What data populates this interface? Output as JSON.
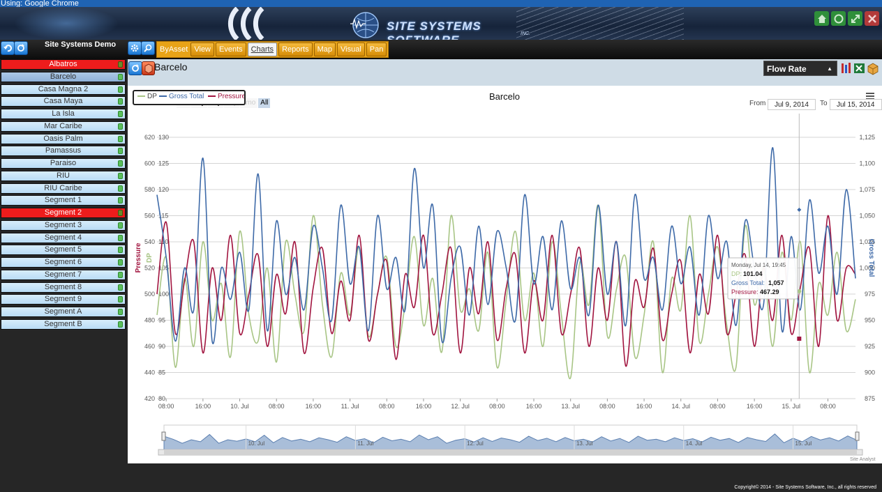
{
  "browser_bar": {
    "text": "Using: Google Chrome"
  },
  "brand": {
    "name": "SITE SYSTEMS SOFTWARE",
    "suffix": "INC."
  },
  "toolbar": {
    "site_title": "Site Systems Demo",
    "nav_label": "ByAsset",
    "tabs": [
      {
        "label": "View"
      },
      {
        "label": "Events"
      },
      {
        "label": "Charts",
        "active": true
      },
      {
        "label": "Reports"
      },
      {
        "label": "Map"
      },
      {
        "label": "Visual"
      },
      {
        "label": "Pan"
      }
    ]
  },
  "sidebar": {
    "items": [
      {
        "label": "Albatros",
        "state": "alert"
      },
      {
        "label": "Barcelo",
        "state": "selected"
      },
      {
        "label": "Casa Magna 2",
        "state": "normal"
      },
      {
        "label": "Casa Maya",
        "state": "normal"
      },
      {
        "label": "La Isla",
        "state": "normal"
      },
      {
        "label": "Mar Caribe",
        "state": "normal"
      },
      {
        "label": "Oasis Palm",
        "state": "normal"
      },
      {
        "label": "Pamassus",
        "state": "normal"
      },
      {
        "label": "Paraiso",
        "state": "normal"
      },
      {
        "label": "RIU",
        "state": "normal"
      },
      {
        "label": "RIU Caribe",
        "state": "normal"
      },
      {
        "label": "Segment 1",
        "state": "normal"
      },
      {
        "label": "Segment 2",
        "state": "alert"
      },
      {
        "label": "Segment 3",
        "state": "normal"
      },
      {
        "label": "Segment 4",
        "state": "normal"
      },
      {
        "label": "Segment 5",
        "state": "normal"
      },
      {
        "label": "Segment 6",
        "state": "normal"
      },
      {
        "label": "Segment 7",
        "state": "normal"
      },
      {
        "label": "Segment 8",
        "state": "normal"
      },
      {
        "label": "Segment 9",
        "state": "normal"
      },
      {
        "label": "Segment A",
        "state": "normal"
      },
      {
        "label": "Segment B",
        "state": "normal"
      }
    ]
  },
  "main": {
    "title": "Barcelo",
    "selector": "Flow Rate"
  },
  "chart_data": {
    "type": "line",
    "title": "Barcelo",
    "zoom": {
      "label": "Zoom",
      "buttons": [
        {
          "label": "2hr",
          "enabled": false
        },
        {
          "label": "1dy",
          "enabled": true
        },
        {
          "label": "2dy",
          "enabled": true
        },
        {
          "label": "7dy",
          "enabled": false
        },
        {
          "label": "1mo",
          "enabled": false
        },
        {
          "label": "All",
          "enabled": true,
          "active": true
        }
      ]
    },
    "range": {
      "from_label": "From",
      "from": "Jul 9, 2014",
      "to_label": "To",
      "to": "Jul 15, 2014"
    },
    "legend": [
      {
        "name": "DP",
        "color": "#a8c585"
      },
      {
        "name": "Gross Total",
        "color": "#3e6aa8"
      },
      {
        "name": "Pressure",
        "color": "#a1143f"
      }
    ],
    "axes": {
      "pressure": {
        "label": "Pressure",
        "ticks": [
          "420",
          "440",
          "460",
          "480",
          "500",
          "520",
          "540",
          "560",
          "580",
          "600",
          "620"
        ],
        "range": [
          420,
          620
        ]
      },
      "dp": {
        "label": "DP",
        "ticks": [
          "80",
          "85",
          "90",
          "95",
          "100",
          "105",
          "110",
          "115",
          "120",
          "125",
          "130"
        ],
        "range": [
          80,
          130
        ]
      },
      "gross_total": {
        "label": "Gross Total",
        "ticks": [
          "875",
          "900",
          "925",
          "950",
          "975",
          "1,000",
          "1,025",
          "1,050",
          "1,075",
          "1,100",
          "1,125"
        ],
        "range": [
          875,
          1125
        ]
      },
      "x": {
        "ticks": [
          "08:00",
          "16:00",
          "10. Jul",
          "08:00",
          "16:00",
          "11. Jul",
          "08:00",
          "16:00",
          "12. Jul",
          "08:00",
          "16:00",
          "13. Jul",
          "08:00",
          "16:00",
          "14. Jul",
          "08:00",
          "16:00",
          "15. Jul",
          "08:00"
        ],
        "range_hours": [
          0,
          152
        ]
      }
    },
    "series": [
      {
        "name": "DP",
        "color": "#a8c585",
        "x": [
          0,
          2,
          4,
          6,
          8,
          10,
          12,
          14,
          16,
          18,
          20,
          22,
          24,
          26,
          28,
          30,
          32,
          34,
          36,
          38,
          40,
          42,
          44,
          46,
          48,
          50,
          52,
          54,
          56,
          58,
          60,
          62,
          64,
          66,
          68,
          70,
          72,
          74,
          76,
          78,
          80,
          82,
          84,
          86,
          88,
          90,
          92,
          94,
          96,
          98,
          100,
          102,
          104,
          106,
          108,
          110,
          112,
          114,
          116,
          118,
          120,
          122,
          124,
          126,
          128,
          130,
          132,
          134,
          136,
          138,
          140,
          142,
          144,
          146,
          148,
          150,
          152
        ],
        "values": [
          96,
          107,
          86,
          103,
          90,
          110,
          95,
          102,
          88,
          112,
          96,
          91,
          105,
          87,
          110,
          100,
          93,
          115,
          98,
          88,
          104,
          96,
          109,
          92,
          100,
          107,
          90,
          98,
          111,
          94,
          103,
          89,
          115,
          97,
          101,
          93,
          108,
          86,
          99,
          112,
          95,
          104,
          90,
          110,
          96,
          84,
          106,
          98,
          117,
          92,
          101,
          107,
          88,
          96,
          110,
          85,
          103,
          97,
          115,
          91,
          100,
          109,
          94,
          86,
          113,
          98,
          105,
          90,
          108,
          95,
          110,
          85,
          102,
          96,
          108,
          93,
          99
        ]
      },
      {
        "name": "Gross Total",
        "color": "#3e6aa8",
        "x": [
          0,
          2,
          4,
          6,
          8,
          10,
          12,
          14,
          16,
          18,
          20,
          22,
          24,
          26,
          28,
          30,
          32,
          34,
          36,
          38,
          40,
          42,
          44,
          46,
          48,
          50,
          52,
          54,
          56,
          58,
          60,
          62,
          64,
          66,
          68,
          70,
          72,
          74,
          76,
          78,
          80,
          82,
          84,
          86,
          88,
          90,
          92,
          94,
          96,
          98,
          100,
          102,
          104,
          106,
          108,
          110,
          112,
          114,
          116,
          118,
          120,
          122,
          124,
          126,
          128,
          130,
          132,
          134,
          136,
          138,
          140,
          142,
          144,
          146,
          148,
          150,
          152
        ],
        "values": [
          1070,
          1010,
          930,
          1000,
          960,
          1105,
          930,
          1000,
          970,
          1015,
          960,
          1090,
          940,
          1045,
          975,
          1010,
          960,
          1040,
          1000,
          950,
          1060,
          985,
          1020,
          940,
          1050,
          980,
          1010,
          960,
          1095,
          1000,
          1060,
          930,
          990,
          1020,
          955,
          1040,
          965,
          1035,
          1000,
          950,
          1070,
          985,
          1030,
          960,
          1045,
          980,
          1010,
          955,
          1060,
          975,
          1025,
          945,
          1070,
          990,
          1010,
          960,
          1040,
          985,
          1020,
          955,
          1050,
          990,
          1025,
          945,
          1045,
          1000,
          965,
          1115,
          940,
          1030,
          960,
          1065,
          995,
          1040,
          975,
          1075,
          990
        ]
      },
      {
        "name": "Pressure",
        "color": "#a1143f",
        "x": [
          0,
          2,
          4,
          6,
          8,
          10,
          12,
          14,
          16,
          18,
          20,
          22,
          24,
          26,
          28,
          30,
          32,
          34,
          36,
          38,
          40,
          42,
          44,
          46,
          48,
          50,
          52,
          54,
          56,
          58,
          60,
          62,
          64,
          66,
          68,
          70,
          72,
          74,
          76,
          78,
          80,
          82,
          84,
          86,
          88,
          90,
          92,
          94,
          96,
          98,
          100,
          102,
          104,
          106,
          108,
          110,
          112,
          114,
          116,
          118,
          120,
          122,
          124,
          126,
          128,
          130,
          132,
          134,
          136,
          138,
          140,
          142,
          144,
          146,
          148,
          150,
          152
        ],
        "values": [
          500,
          555,
          470,
          510,
          540,
          455,
          520,
          480,
          545,
          470,
          500,
          530,
          460,
          515,
          485,
          540,
          455,
          505,
          535,
          470,
          510,
          480,
          545,
          465,
          500,
          525,
          450,
          515,
          490,
          545,
          470,
          500,
          535,
          455,
          520,
          485,
          540,
          465,
          505,
          530,
          455,
          510,
          480,
          545,
          470,
          500,
          535,
          460,
          520,
          480,
          540,
          445,
          510,
          490,
          535,
          465,
          500,
          525,
          455,
          515,
          485,
          545,
          470,
          500,
          530,
          460,
          520,
          480,
          545,
          470,
          505,
          535,
          460,
          560,
          480,
          520,
          515
        ]
      }
    ],
    "tooltip": {
      "date": "Monday, Jul 14, 19:45",
      "dp_label": "DP:",
      "dp_value": "101.04",
      "gross_label": "Gross Total:",
      "gross_value": "1,057",
      "pressure_label": "Pressure:",
      "pressure_value": "467.29"
    },
    "crosshair_hour": 139.75,
    "navigator": {
      "labels": [
        "10. Jul",
        "11. Jul",
        "12. Jul",
        "13. Jul",
        "14. Jul",
        "15. Jul"
      ]
    },
    "credit": "Site Analyst"
  },
  "footer": {
    "copyright": "Copyright© 2014 - Site Systems Software, Inc., all rights reserved"
  }
}
